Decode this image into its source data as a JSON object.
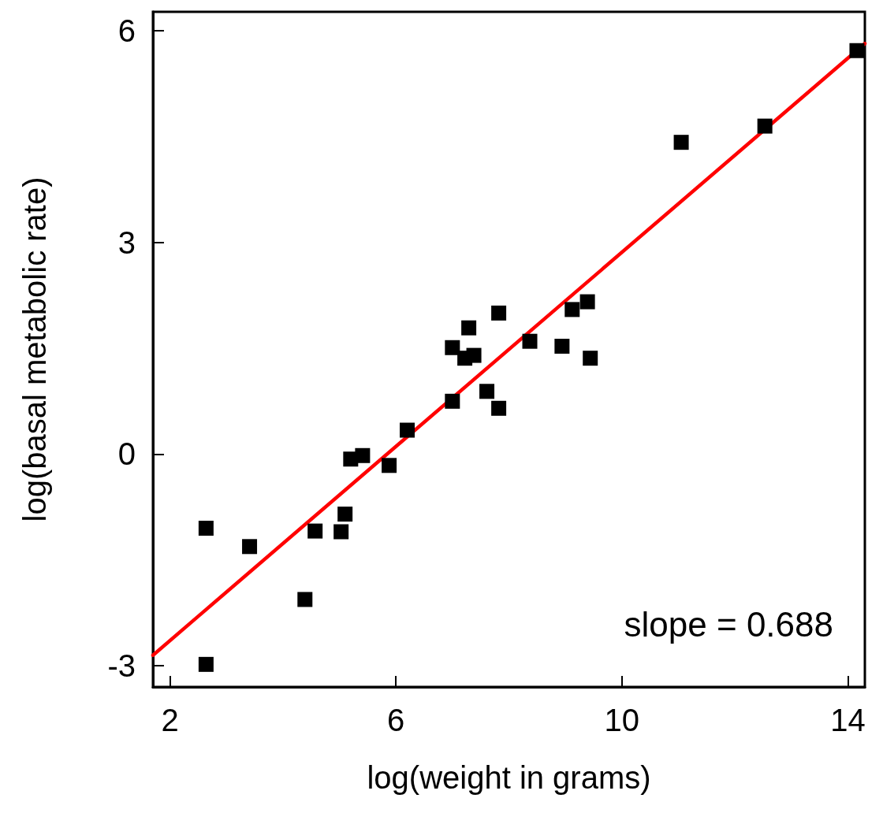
{
  "chart_data": {
    "type": "scatter",
    "xlabel": "log(weight in grams)",
    "ylabel": "log(basal metabolic rate)",
    "xlim": [
      1.7,
      14.3
    ],
    "xticks": [
      2,
      6,
      10,
      14
    ],
    "ylim": [
      -3.3,
      6.27
    ],
    "yticks": [
      -3,
      0,
      3,
      6
    ],
    "grid": false,
    "annotations": [
      "slope = 0.688"
    ],
    "series": [
      {
        "color": "#000000",
        "marker": "square",
        "x": [
          2.64,
          2.64,
          3.41,
          4.39,
          4.57,
          5.03,
          5.1,
          5.2,
          5.41,
          5.88,
          6.2,
          7.0,
          7.0,
          7.22,
          7.38,
          7.29,
          7.61,
          7.82,
          7.82,
          8.37,
          8.94,
          9.12,
          9.39,
          9.44,
          11.05,
          12.53,
          14.16
        ],
        "values": [
          -1.05,
          -2.98,
          -1.31,
          -2.06,
          -1.09,
          -1.1,
          -0.85,
          -0.07,
          -0.02,
          -0.16,
          0.34,
          0.75,
          1.51,
          1.36,
          1.4,
          1.79,
          0.89,
          0.65,
          2.0,
          1.6,
          1.53,
          2.05,
          2.16,
          1.36,
          4.42,
          4.65,
          5.72
        ]
      },
      {
        "type": "line",
        "color": "#ff0000",
        "marker": "none",
        "line_style": "solid",
        "x": [
          1.7,
          14.3
        ],
        "values": [
          -2.85,
          5.82
        ]
      }
    ]
  }
}
